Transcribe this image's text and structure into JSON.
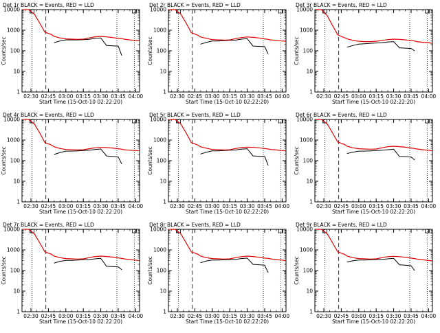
{
  "chart_data": [
    {
      "type": "line",
      "title": "Det 1r BLACK = Events, RED = LLD",
      "xlabel": "Start Time (15-Oct-10 02:22:20)",
      "ylabel": "Counts/sec",
      "ylim": [
        1,
        10000
      ],
      "yscale": "log",
      "x": [
        "02:23",
        "02:28",
        "02:33",
        "02:38",
        "02:42",
        "02:45",
        "02:48",
        "02:50",
        "02:55",
        "03:00",
        "03:05",
        "03:10",
        "03:15",
        "03:20",
        "03:25",
        "03:30",
        "03:35",
        "03:40",
        "03:45",
        "03:48",
        "03:50",
        "03:55",
        "04:00",
        "04:03"
      ],
      "series": [
        {
          "name": "BLACK = Events",
          "values": [
            null,
            null,
            null,
            null,
            null,
            null,
            null,
            250,
            300,
            340,
            340,
            340,
            350,
            360,
            400,
            420,
            180,
            175,
            170,
            60,
            null,
            null,
            null,
            null
          ]
        },
        {
          "name": "RED = LLD",
          "values": [
            10000,
            10000,
            6000,
            2000,
            800,
            700,
            600,
            500,
            420,
            380,
            370,
            360,
            370,
            420,
            480,
            500,
            480,
            440,
            400,
            390,
            370,
            340,
            320,
            310
          ]
        }
      ]
    },
    {
      "type": "line",
      "title": "Det 2r BLACK = Events, RED = LLD",
      "xlabel": "Start Time (15-Oct-10 02:22:20)",
      "ylabel": "Counts/sec",
      "ylim": [
        1,
        10000
      ],
      "yscale": "log",
      "x": [
        "02:23",
        "02:28",
        "02:33",
        "02:38",
        "02:42",
        "02:45",
        "02:48",
        "02:50",
        "02:55",
        "03:00",
        "03:05",
        "03:10",
        "03:15",
        "03:20",
        "03:25",
        "03:30",
        "03:35",
        "03:40",
        "03:45",
        "03:48",
        "03:50",
        "03:55",
        "04:00",
        "04:03"
      ],
      "series": [
        {
          "name": "BLACK = Events",
          "values": [
            null,
            null,
            null,
            null,
            null,
            null,
            null,
            210,
            260,
            300,
            300,
            310,
            320,
            330,
            370,
            390,
            170,
            165,
            160,
            70,
            null,
            null,
            null,
            null
          ]
        },
        {
          "name": "RED = LLD",
          "values": [
            10000,
            10000,
            6000,
            2000,
            750,
            650,
            560,
            470,
            400,
            350,
            340,
            330,
            340,
            390,
            440,
            470,
            450,
            420,
            380,
            360,
            340,
            320,
            300,
            290
          ]
        }
      ]
    },
    {
      "type": "line",
      "title": "Det 3r BLACK = Events, RED = LLD",
      "xlabel": "Start Time (15-Oct-10 02:22:20)",
      "ylabel": "Counts/sec",
      "ylim": [
        1,
        10000
      ],
      "yscale": "log",
      "x": [
        "02:23",
        "02:28",
        "02:33",
        "02:38",
        "02:42",
        "02:45",
        "02:48",
        "02:50",
        "02:55",
        "03:00",
        "03:05",
        "03:10",
        "03:15",
        "03:20",
        "03:25",
        "03:30",
        "03:35",
        "03:40",
        "03:45",
        "03:48",
        "03:50",
        "03:55",
        "04:00",
        "04:03"
      ],
      "series": [
        {
          "name": "BLACK = Events",
          "values": [
            null,
            null,
            null,
            null,
            null,
            null,
            null,
            150,
            180,
            210,
            220,
            230,
            240,
            250,
            270,
            280,
            140,
            135,
            130,
            100,
            null,
            null,
            null,
            null
          ]
        },
        {
          "name": "RED = LLD",
          "values": [
            10000,
            10000,
            5000,
            1500,
            600,
            500,
            430,
            380,
            320,
            290,
            280,
            280,
            290,
            320,
            350,
            370,
            360,
            340,
            320,
            300,
            280,
            260,
            250,
            230
          ]
        }
      ]
    },
    {
      "type": "line",
      "title": "Det 4r BLACK = Events, RED = LLD",
      "xlabel": "Start Time (15-Oct-10 02:22:20)",
      "ylabel": "Counts/sec",
      "ylim": [
        1,
        10000
      ],
      "yscale": "log",
      "x": [
        "02:23",
        "02:28",
        "02:33",
        "02:38",
        "02:42",
        "02:45",
        "02:48",
        "02:50",
        "02:55",
        "03:00",
        "03:05",
        "03:10",
        "03:15",
        "03:20",
        "03:25",
        "03:30",
        "03:35",
        "03:40",
        "03:45",
        "03:48",
        "03:50",
        "03:55",
        "04:00",
        "04:03"
      ],
      "series": [
        {
          "name": "BLACK = Events",
          "values": [
            null,
            null,
            null,
            null,
            null,
            null,
            null,
            200,
            250,
            290,
            290,
            300,
            310,
            320,
            350,
            370,
            170,
            160,
            150,
            70,
            null,
            null,
            null,
            null
          ]
        },
        {
          "name": "RED = LLD",
          "values": [
            10000,
            10000,
            6000,
            2000,
            750,
            650,
            560,
            470,
            390,
            350,
            340,
            330,
            340,
            380,
            420,
            440,
            430,
            410,
            380,
            360,
            340,
            320,
            310,
            300
          ]
        }
      ]
    },
    {
      "type": "line",
      "title": "Det 5r BLACK = Events, RED = LLD",
      "xlabel": "Start Time (15-Oct-10 02:22:20)",
      "ylabel": "Counts/sec",
      "ylim": [
        1,
        10000
      ],
      "yscale": "log",
      "x": [
        "02:23",
        "02:28",
        "02:33",
        "02:38",
        "02:42",
        "02:45",
        "02:48",
        "02:50",
        "02:55",
        "03:00",
        "03:05",
        "03:10",
        "03:15",
        "03:20",
        "03:25",
        "03:30",
        "03:35",
        "03:40",
        "03:45",
        "03:48",
        "03:50",
        "03:55",
        "04:00",
        "04:03"
      ],
      "series": [
        {
          "name": "BLACK = Events",
          "values": [
            null,
            null,
            null,
            null,
            null,
            null,
            null,
            210,
            260,
            300,
            300,
            310,
            320,
            330,
            360,
            380,
            170,
            165,
            160,
            60,
            null,
            null,
            null,
            null
          ]
        },
        {
          "name": "RED = LLD",
          "values": [
            10000,
            10000,
            6000,
            2000,
            750,
            650,
            560,
            470,
            400,
            350,
            340,
            330,
            340,
            390,
            430,
            450,
            440,
            420,
            390,
            370,
            350,
            330,
            310,
            300
          ]
        }
      ]
    },
    {
      "type": "line",
      "title": "Det 6r BLACK = Events, RED = LLD",
      "xlabel": "Start Time (15-Oct-10 02:22:20)",
      "ylabel": "Counts/sec",
      "ylim": [
        1,
        10000
      ],
      "yscale": "log",
      "x": [
        "02:23",
        "02:28",
        "02:33",
        "02:38",
        "02:42",
        "02:45",
        "02:48",
        "02:50",
        "02:55",
        "03:00",
        "03:05",
        "03:10",
        "03:15",
        "03:20",
        "03:25",
        "03:30",
        "03:35",
        "03:40",
        "03:45",
        "03:48",
        "03:50",
        "03:55",
        "04:00",
        "04:03"
      ],
      "series": [
        {
          "name": "BLACK = Events",
          "values": [
            null,
            null,
            null,
            null,
            null,
            null,
            null,
            220,
            260,
            290,
            290,
            300,
            310,
            320,
            340,
            360,
            160,
            155,
            150,
            110,
            null,
            null,
            null,
            null
          ]
        },
        {
          "name": "RED = LLD",
          "values": [
            10000,
            10000,
            6000,
            2000,
            800,
            700,
            600,
            500,
            420,
            380,
            370,
            360,
            370,
            420,
            480,
            500,
            480,
            450,
            410,
            390,
            370,
            340,
            320,
            300
          ]
        }
      ]
    },
    {
      "type": "line",
      "title": "Det 7r BLACK = Events, RED = LLD",
      "xlabel": "Start Time (15-Oct-10 02:22:20)",
      "ylabel": "Counts/sec",
      "ylim": [
        1,
        10000
      ],
      "yscale": "log",
      "x": [
        "02:23",
        "02:28",
        "02:33",
        "02:38",
        "02:42",
        "02:45",
        "02:48",
        "02:50",
        "02:55",
        "03:00",
        "03:05",
        "03:10",
        "03:15",
        "03:20",
        "03:25",
        "03:30",
        "03:35",
        "03:40",
        "03:45",
        "03:48",
        "03:50",
        "03:55",
        "04:00",
        "04:03"
      ],
      "series": [
        {
          "name": "BLACK = Events",
          "values": [
            null,
            null,
            null,
            null,
            null,
            null,
            null,
            230,
            280,
            310,
            310,
            320,
            330,
            340,
            370,
            390,
            160,
            155,
            150,
            110,
            null,
            null,
            null,
            null
          ]
        },
        {
          "name": "RED = LLD",
          "values": [
            10000,
            10000,
            6000,
            2000,
            800,
            700,
            600,
            500,
            420,
            380,
            370,
            360,
            370,
            420,
            480,
            500,
            480,
            450,
            410,
            390,
            370,
            340,
            320,
            300
          ]
        }
      ]
    },
    {
      "type": "line",
      "title": "Det 8r BLACK = Events, RED = LLD",
      "xlabel": "Start Time (15-Oct-10 02:22:20)",
      "ylabel": "Counts/sec",
      "ylim": [
        1,
        10000
      ],
      "yscale": "log",
      "x": [
        "02:23",
        "02:28",
        "02:33",
        "02:38",
        "02:42",
        "02:45",
        "02:48",
        "02:50",
        "02:55",
        "03:00",
        "03:05",
        "03:10",
        "03:15",
        "03:20",
        "03:25",
        "03:30",
        "03:35",
        "03:40",
        "03:45",
        "03:48",
        "03:50",
        "03:55",
        "04:00",
        "04:03"
      ],
      "series": [
        {
          "name": "BLACK = Events",
          "values": [
            null,
            null,
            null,
            null,
            null,
            null,
            null,
            240,
            290,
            320,
            320,
            330,
            340,
            350,
            380,
            400,
            200,
            190,
            180,
            80,
            null,
            null,
            null,
            null
          ]
        },
        {
          "name": "RED = LLD",
          "values": [
            10000,
            10000,
            6000,
            2000,
            800,
            700,
            600,
            500,
            420,
            380,
            370,
            360,
            370,
            420,
            470,
            500,
            480,
            440,
            400,
            390,
            370,
            340,
            320,
            300
          ]
        }
      ]
    },
    {
      "type": "line",
      "title": "Det 9r BLACK = Events, RED = LLD",
      "xlabel": "Start Time (15-Oct-10 02:22:20)",
      "ylabel": "Counts/sec",
      "ylim": [
        1,
        10000
      ],
      "yscale": "log",
      "x": [
        "02:23",
        "02:28",
        "02:33",
        "02:38",
        "02:42",
        "02:45",
        "02:48",
        "02:50",
        "02:55",
        "03:00",
        "03:05",
        "03:10",
        "03:15",
        "03:20",
        "03:25",
        "03:30",
        "03:35",
        "03:40",
        "03:45",
        "03:48",
        "03:50",
        "03:55",
        "04:00",
        "04:03"
      ],
      "series": [
        {
          "name": "BLACK = Events",
          "values": [
            null,
            null,
            null,
            null,
            null,
            null,
            null,
            260,
            300,
            320,
            320,
            330,
            340,
            350,
            370,
            390,
            190,
            180,
            170,
            100,
            null,
            null,
            null,
            null
          ]
        },
        {
          "name": "RED = LLD",
          "values": [
            10000,
            10000,
            6000,
            2000,
            800,
            700,
            600,
            500,
            420,
            380,
            370,
            360,
            370,
            420,
            470,
            490,
            470,
            440,
            400,
            380,
            360,
            330,
            310,
            290
          ]
        }
      ]
    }
  ],
  "shared": {
    "yticks": [
      "10000",
      "1000",
      "100",
      "10",
      "1"
    ],
    "xticks": [
      "02:30",
      "02:45",
      "03:00",
      "03:15",
      "03:30",
      "03:45",
      "04:00"
    ],
    "xtick_minutes": [
      7.67,
      22.67,
      37.67,
      52.67,
      67.67,
      82.67,
      97.67
    ],
    "xrange_minutes": [
      0,
      101
    ],
    "markers_minutes": [
      {
        "t": 8.5,
        "style": "dotted"
      },
      {
        "t": 20.5,
        "style": "dashed"
      },
      {
        "t": 81.5,
        "style": "dotted"
      },
      {
        "t": 96.5,
        "style": "dotted"
      }
    ],
    "colors": {
      "events": "#000000",
      "lld": "#e00000",
      "axes": "#000000"
    }
  }
}
